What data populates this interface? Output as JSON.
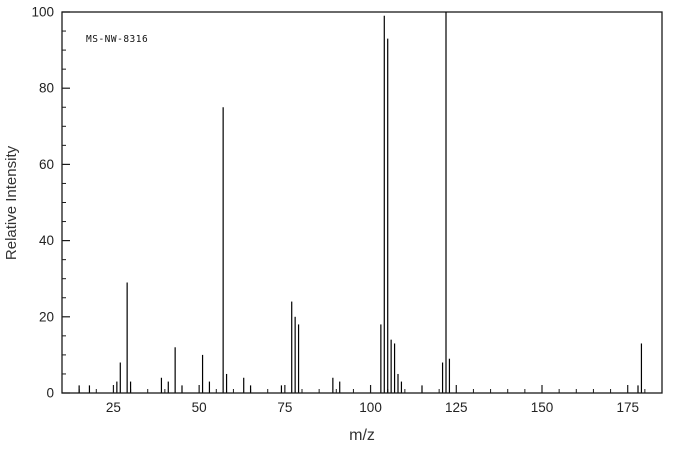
{
  "chart_data": {
    "type": "bar",
    "subtype": "mass-spectrum",
    "title": "",
    "annotation": "MS-NW-8316",
    "xlabel": "m/z",
    "ylabel": "Relative Intensity",
    "xlim": [
      10,
      185
    ],
    "ylim": [
      0,
      100
    ],
    "xticks": [
      25,
      50,
      75,
      100,
      125,
      150,
      175
    ],
    "yticks": [
      0,
      20,
      40,
      60,
      80,
      100
    ],
    "x_minor_step": 5,
    "y_minor_step": 5,
    "grid": false,
    "legend": false,
    "frame": true,
    "line_color": "#000000",
    "frame_color": "#1a1a1a",
    "peaks": [
      [
        15,
        2
      ],
      [
        18,
        2
      ],
      [
        26,
        3
      ],
      [
        27,
        8
      ],
      [
        29,
        29
      ],
      [
        30,
        3
      ],
      [
        39,
        4
      ],
      [
        41,
        3
      ],
      [
        43,
        12
      ],
      [
        45,
        2
      ],
      [
        51,
        10
      ],
      [
        53,
        3
      ],
      [
        57,
        75
      ],
      [
        58,
        5
      ],
      [
        63,
        4
      ],
      [
        65,
        2
      ],
      [
        74,
        2
      ],
      [
        77,
        24
      ],
      [
        78,
        20
      ],
      [
        79,
        18
      ],
      [
        89,
        4
      ],
      [
        91,
        3
      ],
      [
        103,
        18
      ],
      [
        104,
        99
      ],
      [
        105,
        93
      ],
      [
        106,
        14
      ],
      [
        107,
        13
      ],
      [
        108,
        5
      ],
      [
        109,
        3
      ],
      [
        115,
        2
      ],
      [
        121,
        8
      ],
      [
        122,
        100
      ],
      [
        123,
        9
      ],
      [
        178,
        2
      ],
      [
        179,
        13
      ]
    ]
  }
}
